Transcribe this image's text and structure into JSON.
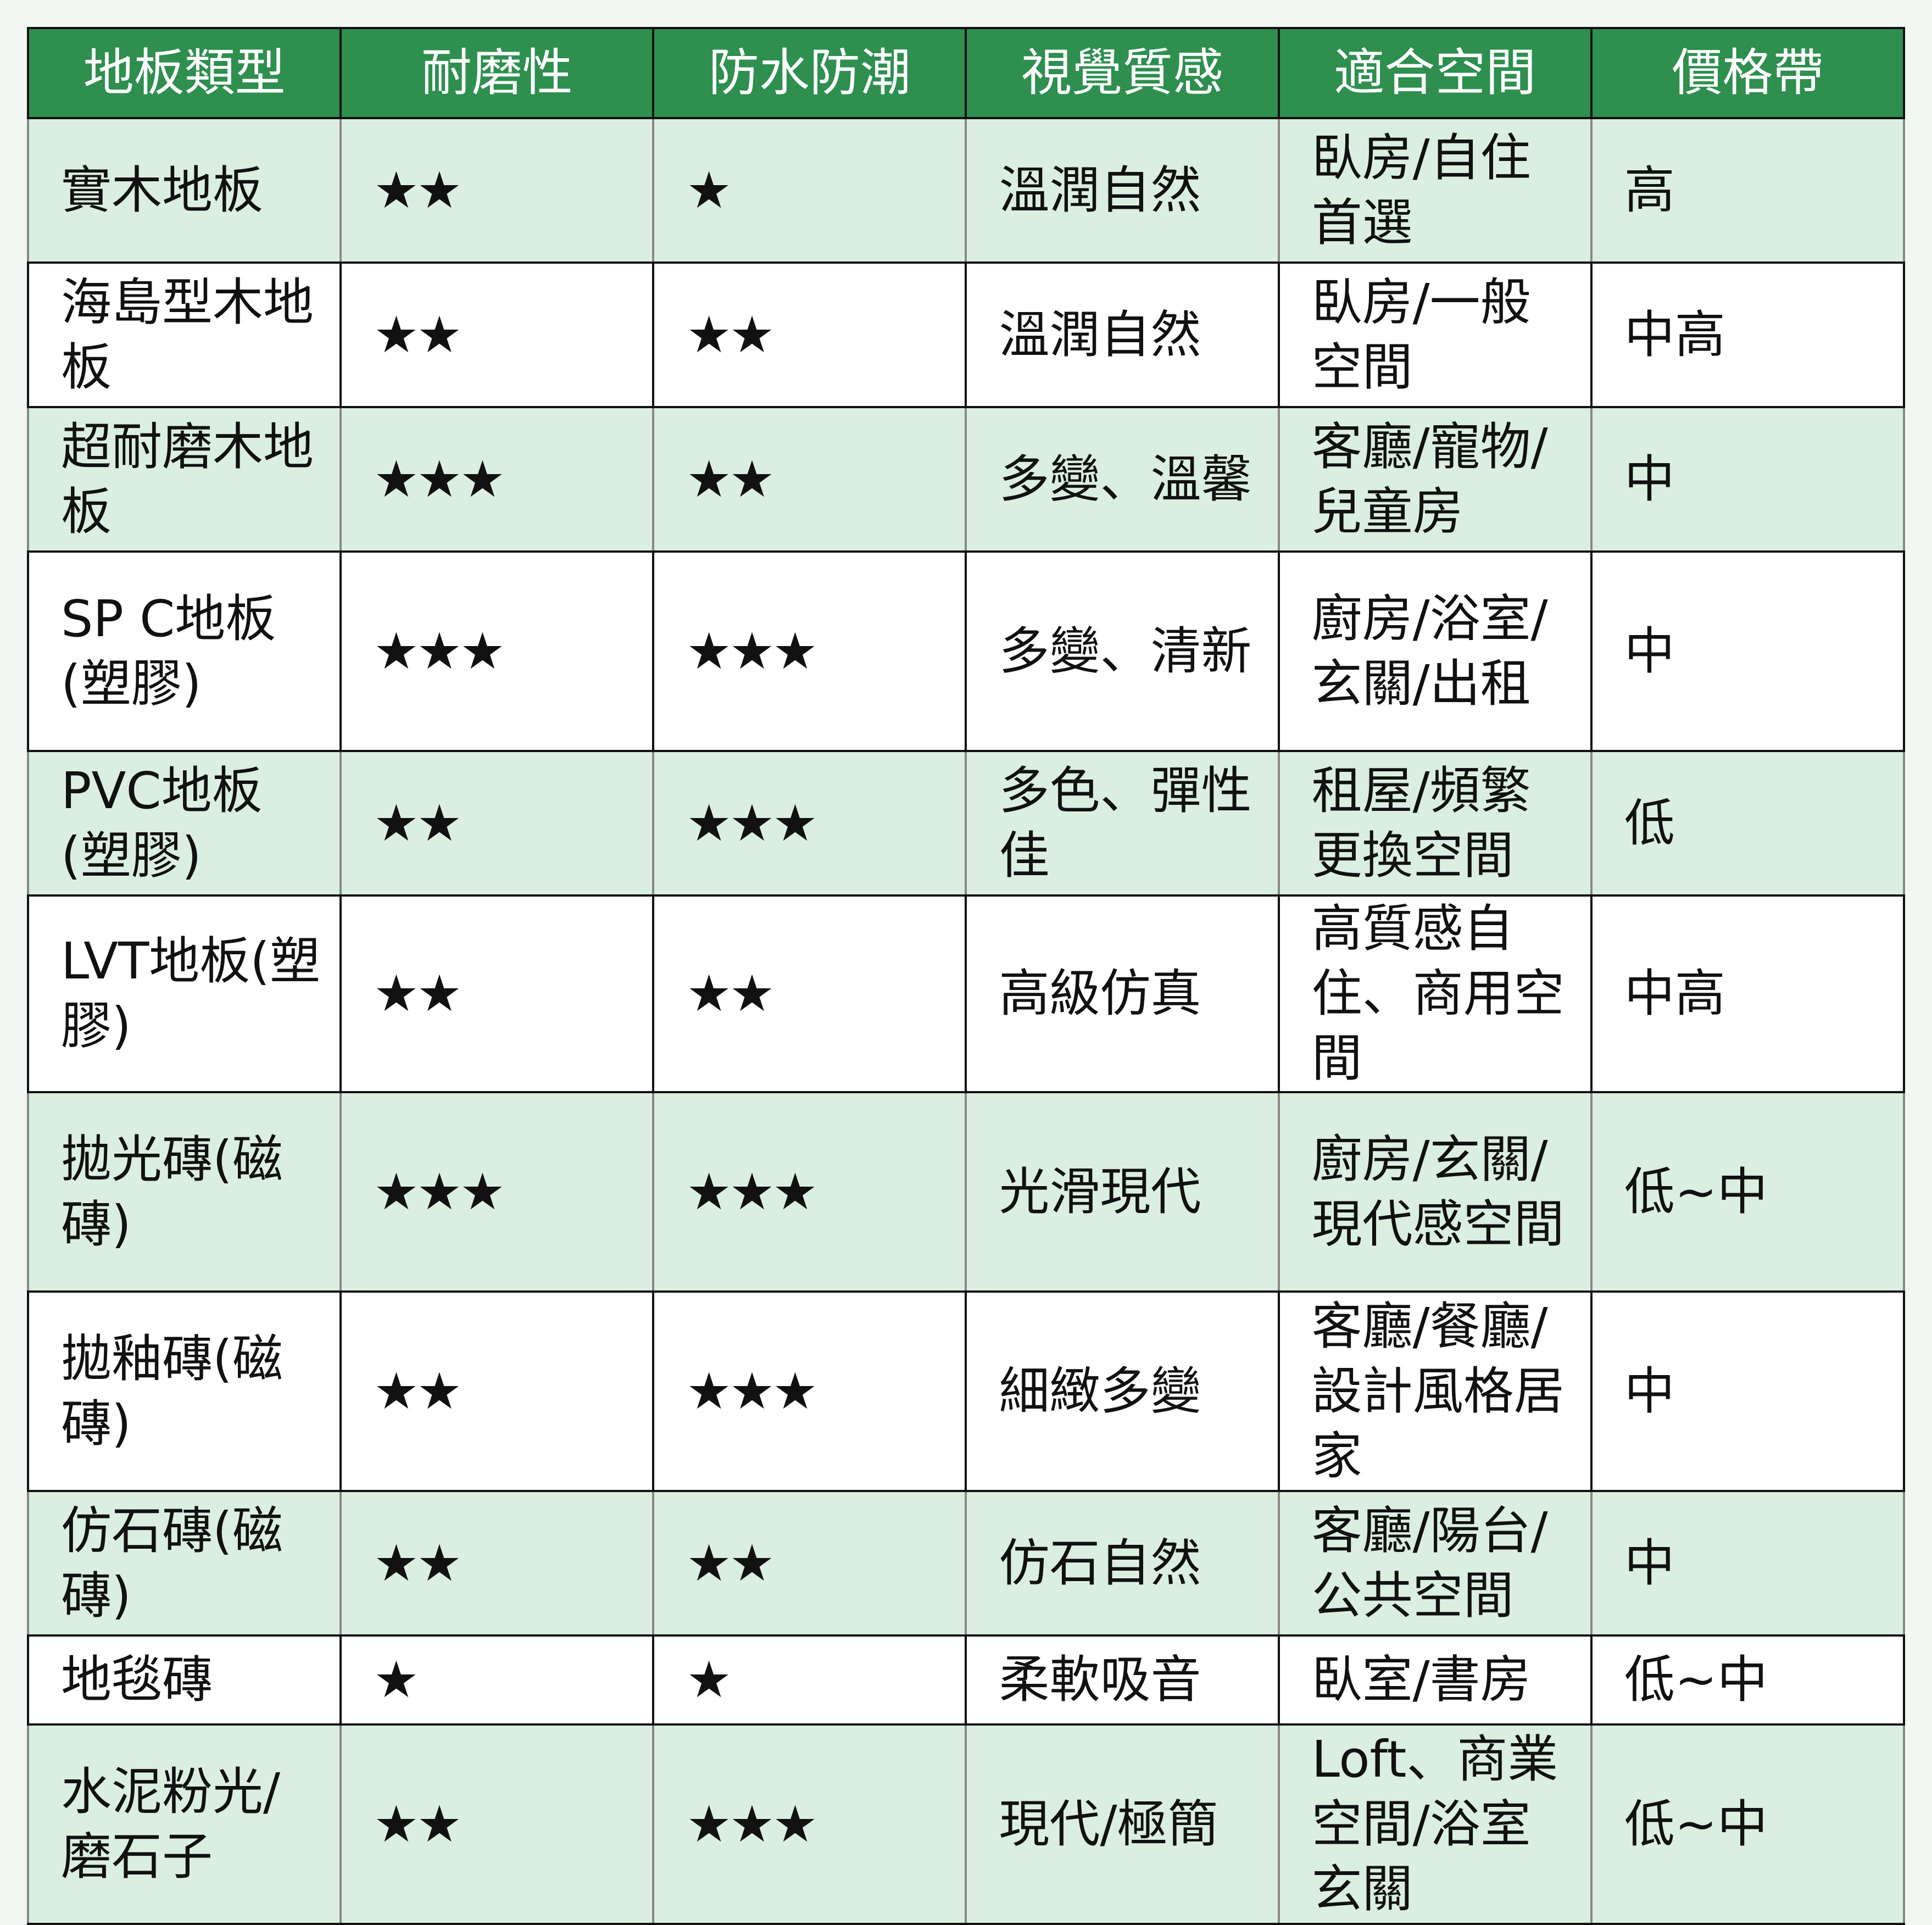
{
  "colors": {
    "header_bg": "#2e8f4f",
    "header_text": "#ffffff",
    "stripe_bg": "#dbeee2",
    "page_bg": "#f2f7f4"
  },
  "headers": [
    "地板類型",
    "耐磨性",
    "防水防潮",
    "視覺質感",
    "適合空間",
    "價格帶"
  ],
  "rows": [
    {
      "type": "實木地板",
      "wear": "★★",
      "water": "★",
      "look": "溫潤自然",
      "space": "臥房/自住首選",
      "price": "高"
    },
    {
      "type": "海島型木地板",
      "wear": "★★",
      "water": "★★",
      "look": "溫潤自然",
      "space": "臥房/一般空間",
      "price": "中高"
    },
    {
      "type": "超耐磨木地板",
      "wear": "★★★",
      "water": "★★",
      "look": "多變、溫馨",
      "space": "客廳/寵物/兒童房",
      "price": "中"
    },
    {
      "type": "SP C地板(塑膠)",
      "wear": "★★★",
      "water": "★★★",
      "look": "多變、清新",
      "space": "廚房/浴室/玄關/出租",
      "price": "中"
    },
    {
      "type": "PVC地板(塑膠)",
      "wear": "★★",
      "water": "★★★",
      "look": "多色、彈性佳",
      "space": "租屋/頻繁更換空間",
      "price": "低"
    },
    {
      "type": "LVT地板(塑膠)",
      "wear": "★★",
      "water": "★★",
      "look": "高級仿真",
      "space": "高質感自住、商用空間",
      "price": "中高"
    },
    {
      "type": "拋光磚(磁磚)",
      "wear": "★★★",
      "water": "★★★",
      "look": "光滑現代",
      "space": "廚房/玄關/現代感空間",
      "price": "低~中"
    },
    {
      "type": "拋釉磚(磁磚)",
      "wear": "★★",
      "water": "★★★",
      "look": "細緻多變",
      "space": "客廳/餐廳/設計風格居家",
      "price": "中"
    },
    {
      "type": "仿石磚(磁磚)",
      "wear": "★★",
      "water": "★★",
      "look": "仿石自然",
      "space": "客廳/陽台/公共空間",
      "price": "中"
    },
    {
      "type": "地毯磚",
      "wear": "★",
      "water": "★",
      "look": "柔軟吸音",
      "space": "臥室/書房",
      "price": "低~中"
    },
    {
      "type": "水泥粉光/磨石子",
      "wear": "★★",
      "water": "★★★",
      "look": "現代/極簡",
      "space": "Loft、商業空間/浴室玄關",
      "price": "低~中"
    }
  ]
}
